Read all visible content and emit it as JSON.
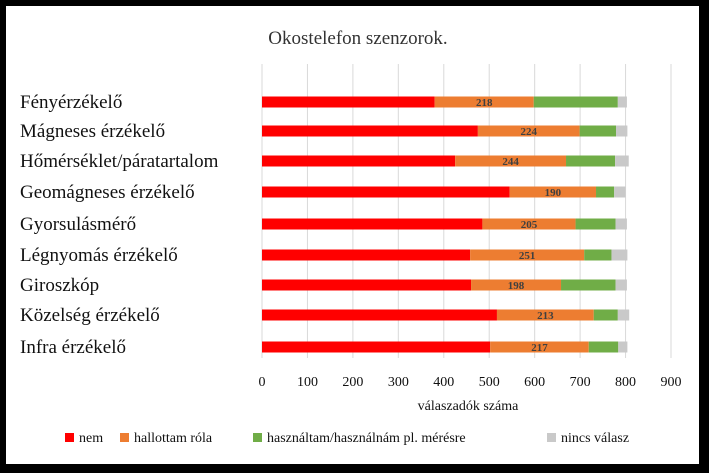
{
  "chart_data": {
    "type": "bar",
    "stacked": true,
    "orientation": "horizontal",
    "title": "Okostelefon szenzorok.",
    "xlabel": "válaszadók száma",
    "ylabel": "",
    "xlim": [
      0,
      900
    ],
    "xticks": [
      "0",
      "100",
      "200",
      "300",
      "400",
      "500",
      "600",
      "700",
      "800",
      "900"
    ],
    "grid": true,
    "legend_position": "bottom",
    "categories": [
      "Fényérzékelő",
      "Mágneses érzékelő",
      "Hőmérséklet/páratartalom",
      "Geomágneses érzékelő",
      "Gyorsulásmérő",
      "Légnyomás érzékelő",
      "Giroszkóp",
      "Közelség érzékelő",
      "Infra érzékelő"
    ],
    "series": [
      {
        "name": "nem",
        "color": "#ff0000",
        "values": [
          380,
          475,
          425,
          545,
          485,
          458,
          460,
          517,
          502
        ]
      },
      {
        "name": "hallottam róla",
        "color": "#ed7d31",
        "values": [
          218,
          224,
          244,
          190,
          205,
          251,
          198,
          213,
          217
        ]
      },
      {
        "name": "használtam/használnám pl. mérésre",
        "color": "#70ad47",
        "values": [
          185,
          80,
          108,
          40,
          88,
          60,
          120,
          53,
          65
        ]
      },
      {
        "name": "nincs válasz",
        "color": "#c9c9c9",
        "values": [
          20,
          25,
          30,
          25,
          25,
          35,
          25,
          25,
          20
        ]
      }
    ],
    "data_labels_series": "hallottam róla"
  }
}
